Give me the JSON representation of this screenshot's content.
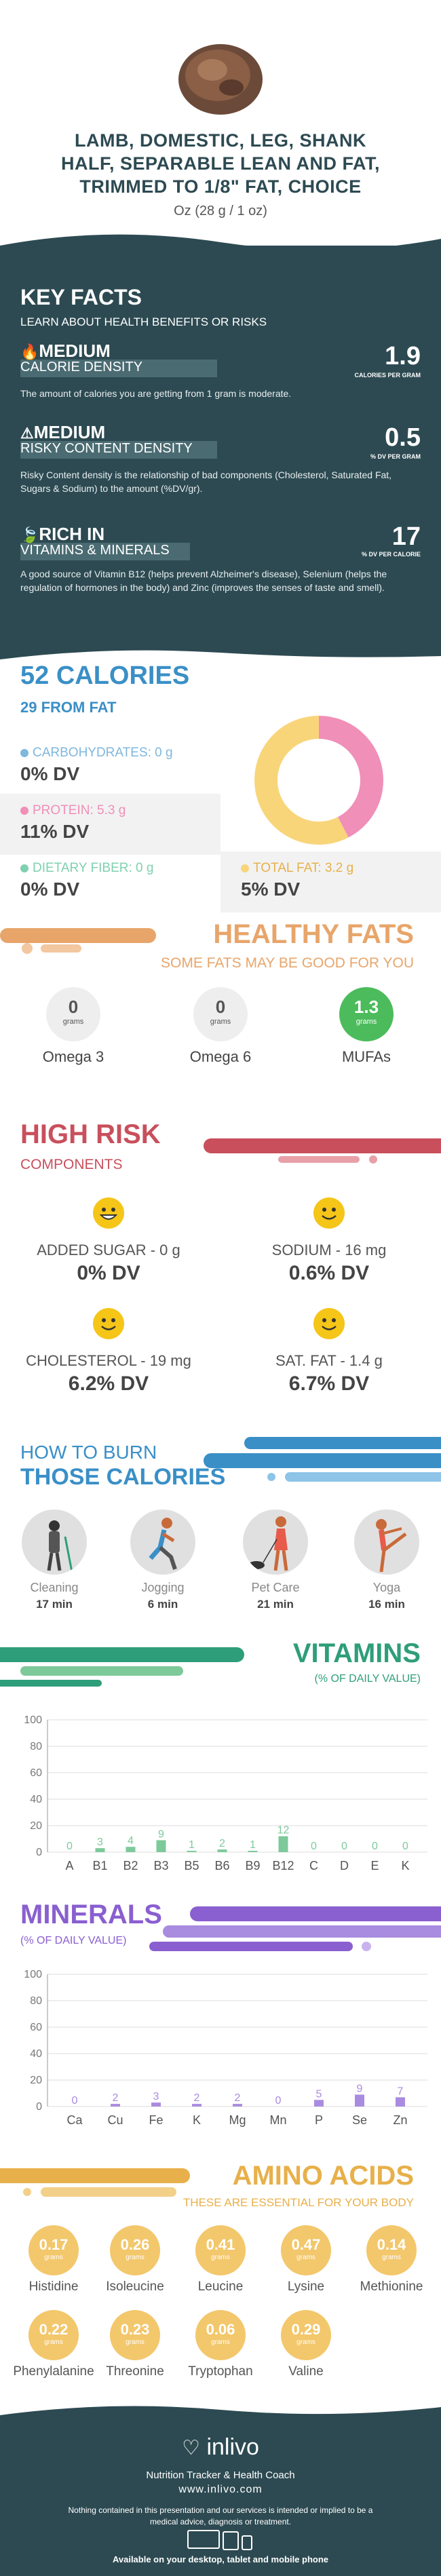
{
  "header": {
    "title_line1": "LAMB, DOMESTIC, LEG, SHANK",
    "title_line2": "HALF, SEPARABLE LEAN AND FAT,",
    "title_line3": "TRIMMED TO 1/8\" FAT, CHOICE",
    "serving": "Oz (28 g / 1 oz)"
  },
  "key_facts": {
    "title": "KEY FACTS",
    "subtitle": "LEARN ABOUT HEALTH BENEFITS OR RISKS",
    "items": [
      {
        "level": "MEDIUM",
        "label": "CALORIE DENSITY",
        "value": "1.9",
        "unit": "CALORIES PER GRAM",
        "desc": "The amount of calories you are getting from 1 gram is moderate.",
        "icon": "flame-icon"
      },
      {
        "level": "MEDIUM",
        "label": "RISKY CONTENT DENSITY",
        "value": "0.5",
        "unit": "% DV PER GRAM",
        "desc": "Risky Content density is the relationship of bad components (Cholesterol, Saturated Fat, Sugars & Sodium) to the amount (%DV/gr).",
        "icon": "warning-icon"
      },
      {
        "level": "RICH  IN",
        "label": "VITAMINS & MINERALS",
        "value": "17",
        "unit": "% DV PER CALORIE",
        "desc": "A good source of Vitamin B12 (helps prevent Alzheimer's disease), Selenium (helps the regulation of hormones in the body) and Zinc (improves the senses of taste and smell).",
        "icon": "leaf-icon"
      }
    ]
  },
  "calories": {
    "title": "52 CALORIES",
    "subtitle": "29 FROM FAT",
    "nutrients": [
      {
        "label": "CARBOHYDRATES: 0 g",
        "dv": "0% DV",
        "color": "#7fb7dd"
      },
      {
        "label": "PROTEIN: 5.3 g",
        "dv": "11% DV",
        "color": "#f08fb8"
      },
      {
        "label": "DIETARY FIBER: 0 g",
        "dv": "0% DV",
        "color": "#7fd0b0"
      },
      {
        "label": "TOTAL FAT: 3.2 g",
        "dv": "5% DV",
        "color": "#f9d57a"
      }
    ],
    "chart_data": {
      "type": "pie",
      "slices": [
        {
          "name": "protein",
          "value": 21.2,
          "color": "#f08fb8"
        },
        {
          "name": "fat",
          "value": 28.8,
          "color": "#f9d57a"
        }
      ]
    }
  },
  "healthy_fats": {
    "title": "HEALTHY FATS",
    "subtitle": "SOME FATS MAY BE GOOD FOR YOU",
    "items": [
      {
        "value": "0",
        "unit": "grams",
        "label": "Omega 3",
        "color": "#eeeeee"
      },
      {
        "value": "0",
        "unit": "grams",
        "label": "Omega 6",
        "color": "#eeeeee"
      },
      {
        "value": "1.3",
        "unit": "grams",
        "label": "MUFAs",
        "color": "#4cbb5c"
      }
    ]
  },
  "high_risk": {
    "title": "HIGH RISK",
    "subtitle": "COMPONENTS",
    "items": [
      {
        "label": "ADDED SUGAR - 0 g",
        "dv": "0% DV",
        "icon": "grin-face-icon"
      },
      {
        "label": "SODIUM - 16 mg",
        "dv": "0.6% DV",
        "icon": "smile-face-icon"
      },
      {
        "label": "CHOLESTEROL - 19 mg",
        "dv": "6.2% DV",
        "icon": "smile-face-icon"
      },
      {
        "label": "SAT. FAT - 1.4 g",
        "dv": "6.7% DV",
        "icon": "smile-face-icon"
      }
    ]
  },
  "burn": {
    "title1": "HOW TO BURN",
    "title2": "THOSE CALORIES",
    "items": [
      {
        "label": "Cleaning",
        "time": "17 min"
      },
      {
        "label": "Jogging",
        "time": "6 min"
      },
      {
        "label": "Pet Care",
        "time": "21 min"
      },
      {
        "label": "Yoga",
        "time": "16 min"
      }
    ]
  },
  "vitamins": {
    "title": "VITAMINS",
    "subtitle": "(% OF DAILY VALUE)",
    "chart_data": {
      "type": "bar",
      "categories": [
        "A",
        "B1",
        "B2",
        "B3",
        "B5",
        "B6",
        "B9",
        "B12",
        "C",
        "D",
        "E",
        "K"
      ],
      "values": [
        0,
        3,
        4,
        9,
        1,
        2,
        1,
        12,
        0,
        0,
        0,
        0
      ],
      "yticks": [
        0,
        20,
        40,
        60,
        80,
        100
      ],
      "ylim": [
        0,
        100
      ],
      "color": "#7dc99a"
    }
  },
  "minerals": {
    "title": "MINERALS",
    "subtitle": "(% OF DAILY VALUE)",
    "chart_data": {
      "type": "bar",
      "categories": [
        "Ca",
        "Cu",
        "Fe",
        "K",
        "Mg",
        "Mn",
        "P",
        "Se",
        "Zn"
      ],
      "values": [
        0,
        2,
        3,
        2,
        2,
        0,
        5,
        9,
        7
      ],
      "yticks": [
        0,
        20,
        40,
        60,
        80,
        100
      ],
      "ylim": [
        0,
        100
      ],
      "color": "#a98be0"
    }
  },
  "amino": {
    "title": "AMINO ACIDS",
    "subtitle": "THESE ARE ESSENTIAL FOR YOUR BODY",
    "unit": "grams",
    "items": [
      {
        "value": "0.17",
        "label": "Histidine"
      },
      {
        "value": "0.26",
        "label": "Isoleucine"
      },
      {
        "value": "0.41",
        "label": "Leucine"
      },
      {
        "value": "0.47",
        "label": "Lysine"
      },
      {
        "value": "0.14",
        "label": "Methionine"
      },
      {
        "value": "0.22",
        "label": "Phenylalanine"
      },
      {
        "value": "0.23",
        "label": "Threonine"
      },
      {
        "value": "0.06",
        "label": "Tryptophan"
      },
      {
        "value": "0.29",
        "label": "Valine"
      }
    ]
  },
  "footer": {
    "brand": "inlivo",
    "tagline": "Nutrition Tracker & Health Coach",
    "site": "www.inlivo.com",
    "disclaimer": "Nothing contained in this presentation and our services is intended or implied to be a medical advice, diagnosis or treatment.",
    "available": "Available on your desktop, tablet and mobile phone"
  }
}
